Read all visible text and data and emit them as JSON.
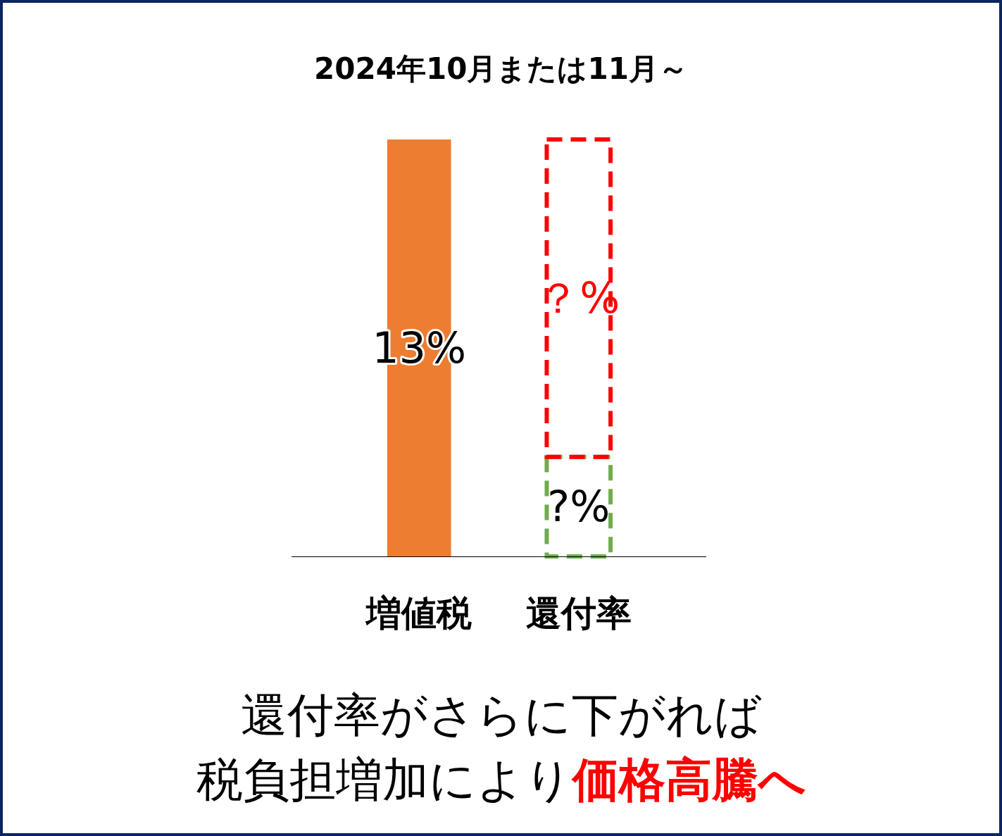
{
  "chart_data": {
    "type": "bar",
    "title": "2024年10月または11月～",
    "categories": [
      "増値税",
      "還付率"
    ],
    "stacked": true,
    "series": [
      {
        "color": "#ed7d31",
        "values": [
          13,
          null
        ],
        "value_labels": [
          "13%",
          null
        ]
      },
      {
        "color": "#70ad47",
        "values": [
          null,
          3.1
        ],
        "value_labels": [
          null,
          "?%"
        ],
        "line_style": "dashed"
      },
      {
        "color": "#ff0000",
        "values": [
          null,
          9.9
        ],
        "value_labels": [
          null,
          "？%"
        ],
        "line_style": "dashed"
      }
    ],
    "annotations": [
      "還付率がさらに下がれば",
      "税負担増加により",
      "価格高騰へ"
    ]
  }
}
